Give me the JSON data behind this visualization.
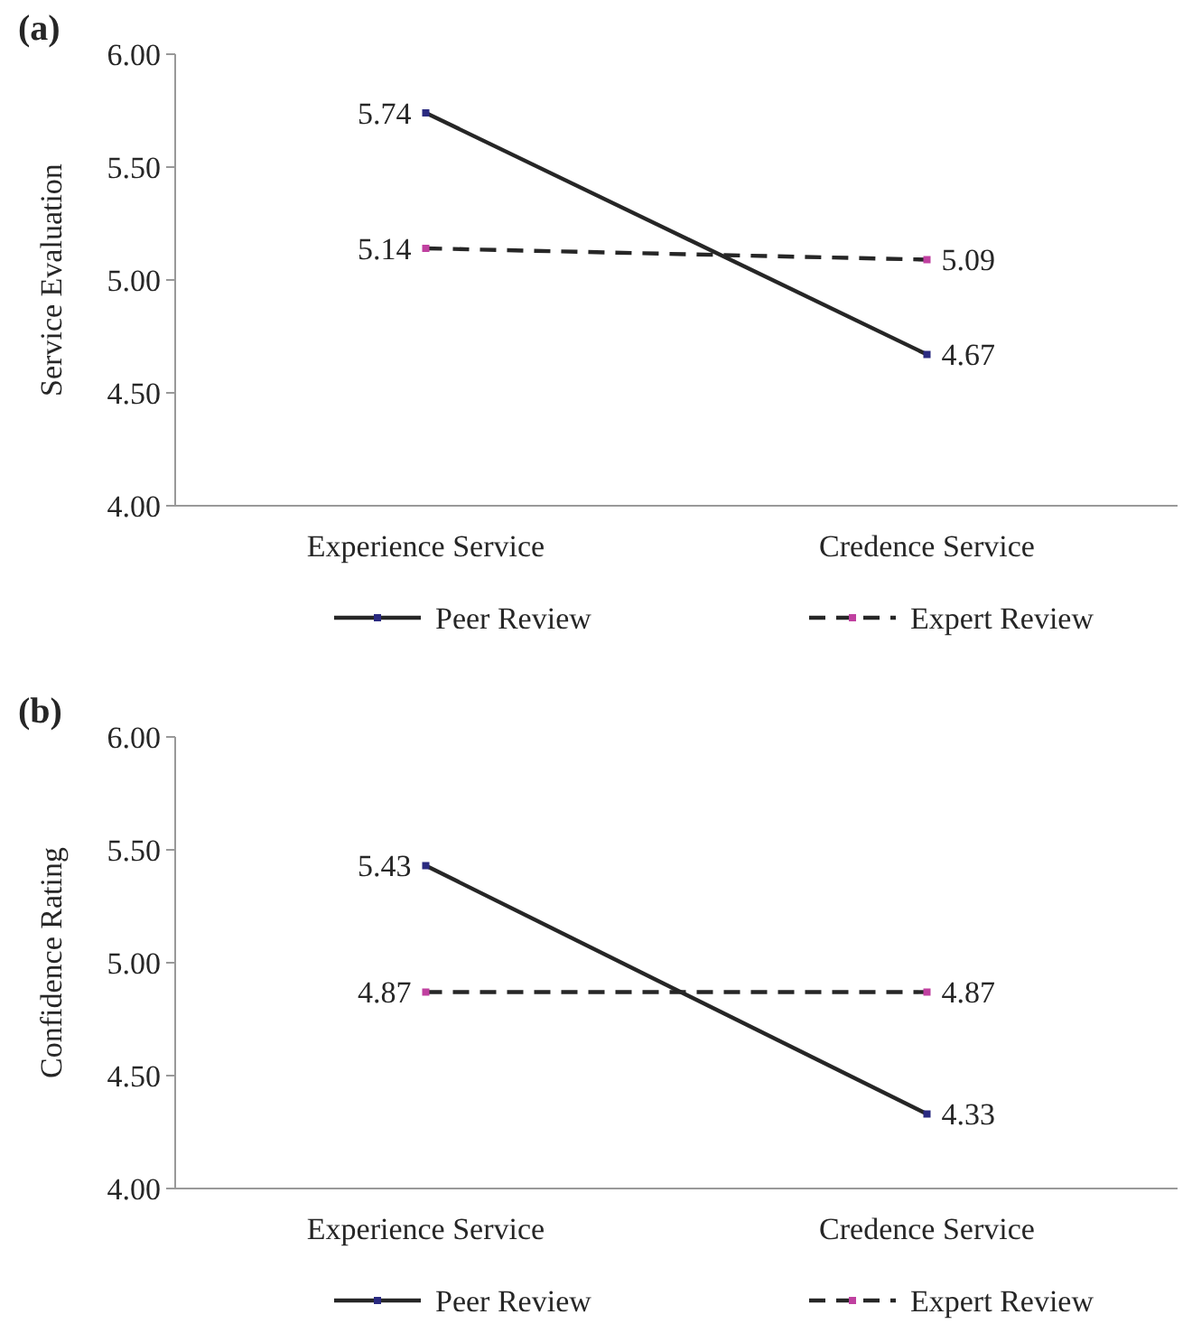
{
  "chart_data": [
    {
      "type": "line",
      "title": "(a)",
      "ylabel": "Service Evaluation",
      "categories": [
        "Experience Service",
        "Credence Service"
      ],
      "ylim": [
        4,
        6
      ],
      "yticks": [
        {
          "value": 4,
          "label": "4.00"
        },
        {
          "value": 4.5,
          "label": "4.50"
        },
        {
          "value": 5,
          "label": "5.00"
        },
        {
          "value": 5.5,
          "label": "5.50"
        },
        {
          "value": 6,
          "label": "6.00"
        }
      ],
      "legend": "bottom",
      "marker": "square",
      "data_labels": true,
      "grid": false,
      "series": [
        {
          "name": "Peer Review",
          "color": "#262626",
          "line_style": "solid",
          "values": [
            5.74,
            4.67
          ]
        },
        {
          "name": "Expert Review",
          "color": "#262626",
          "line_style": "dashed",
          "values": [
            5.14,
            5.09
          ]
        }
      ]
    },
    {
      "type": "line",
      "title": "(b)",
      "ylabel": "Confidence Rating",
      "categories": [
        "Experience Service",
        "Credence Service"
      ],
      "ylim": [
        4,
        6
      ],
      "yticks": [
        {
          "value": 4,
          "label": "4.00"
        },
        {
          "value": 4.5,
          "label": "4.50"
        },
        {
          "value": 5,
          "label": "5.00"
        },
        {
          "value": 5.5,
          "label": "5.50"
        },
        {
          "value": 6,
          "label": "6.00"
        }
      ],
      "legend": "bottom",
      "marker": "square",
      "data_labels": true,
      "grid": false,
      "series": [
        {
          "name": "Peer Review",
          "color": "#262626",
          "line_style": "solid",
          "values": [
            5.43,
            4.33
          ]
        },
        {
          "name": "Expert Review",
          "color": "#262626",
          "line_style": "dashed",
          "values": [
            4.87,
            4.87
          ]
        }
      ]
    }
  ]
}
